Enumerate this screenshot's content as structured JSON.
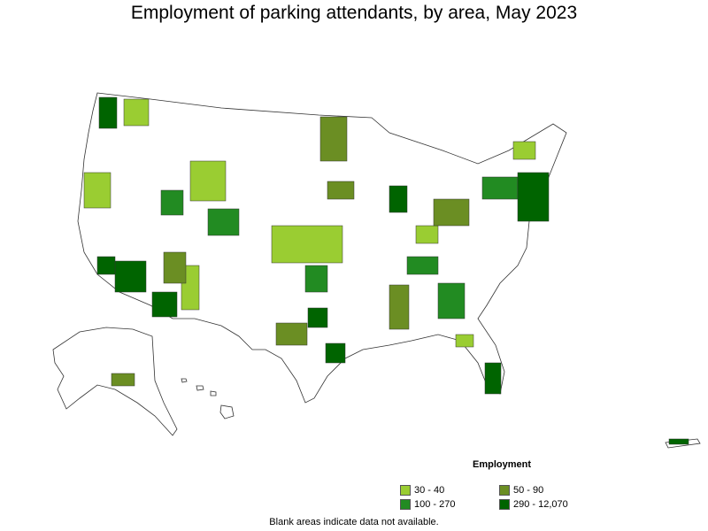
{
  "title": "Employment of parking attendants, by area, May 2023",
  "legend": {
    "title": "Employment",
    "items": [
      {
        "label": "30 - 40",
        "color": "#9acd32"
      },
      {
        "label": "50 - 90",
        "color": "#6b8e23"
      },
      {
        "label": "100 - 270",
        "color": "#228b22"
      },
      {
        "label": "290 - 12,070",
        "color": "#006400"
      }
    ]
  },
  "footnote": "Blank areas indicate data not available.",
  "colors": {
    "border": "#333333",
    "background": "#ffffff"
  }
}
